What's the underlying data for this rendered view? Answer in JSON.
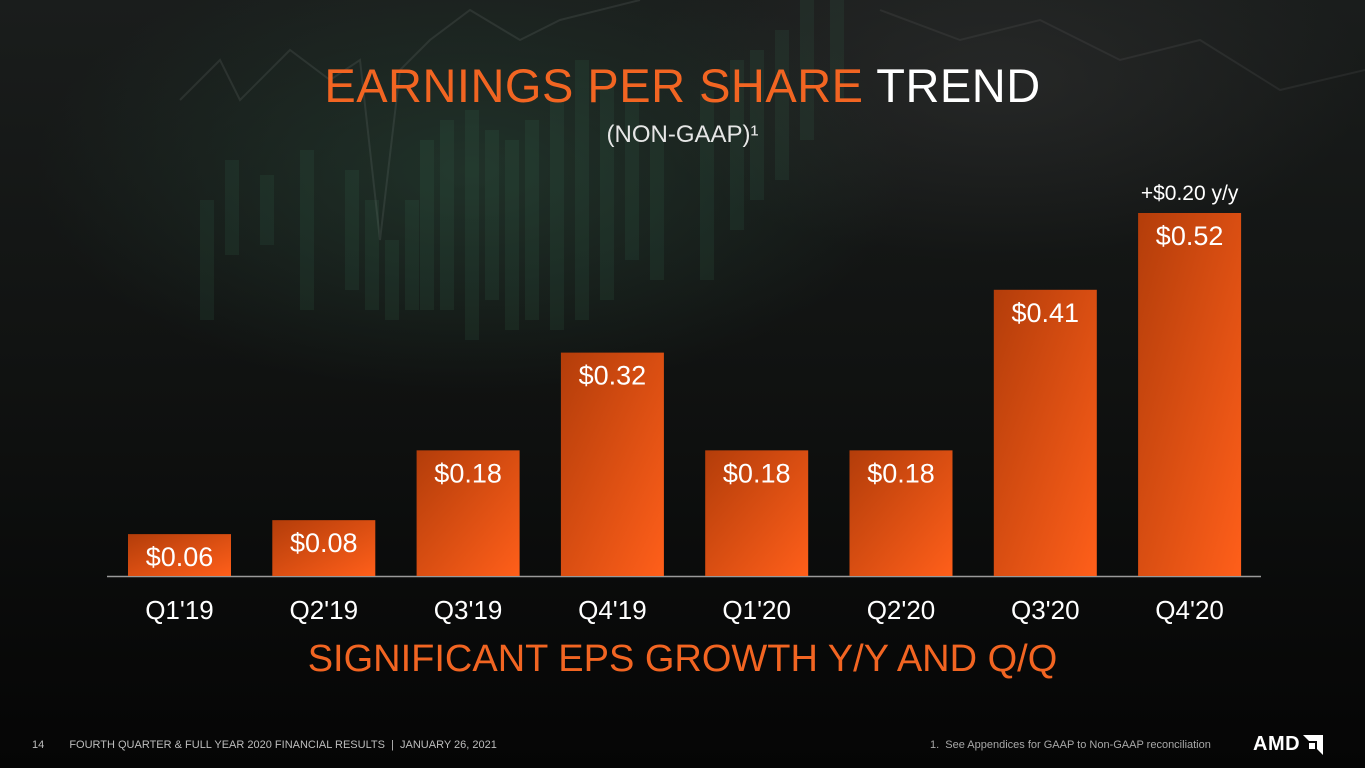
{
  "slide": {
    "title_accent": "EARNINGS PER SHARE",
    "title_plain": "TREND",
    "subtitle": "(NON-GAAP)¹",
    "tagline": "SIGNIFICANT EPS GROWTH Y/Y AND Q/Q"
  },
  "footer": {
    "page_number": "14",
    "left_text": "FOURTH QUARTER & FULL YEAR 2020 FINANCIAL RESULTS  |  JANUARY 26, 2021",
    "right_note": "1.  See Appendices for GAAP to Non-GAAP reconciliation",
    "logo_text": "AMD"
  },
  "colors": {
    "accent": "#f26522",
    "bar_dark": "#b8400a",
    "bar_light": "#ff5f1a"
  },
  "chart_data": {
    "type": "bar",
    "categories": [
      "Q1'19",
      "Q2'19",
      "Q3'19",
      "Q4'19",
      "Q1'20",
      "Q2'20",
      "Q3'20",
      "Q4'20"
    ],
    "values": [
      0.06,
      0.08,
      0.18,
      0.32,
      0.18,
      0.18,
      0.41,
      0.52
    ],
    "data_labels": [
      "$0.06",
      "$0.08",
      "$0.18",
      "$0.32",
      "$0.18",
      "$0.18",
      "$0.41",
      "$0.52"
    ],
    "annotation": {
      "category": "Q4'20",
      "text": "+$0.20 y/y"
    },
    "title": "EARNINGS PER SHARE TREND",
    "subtitle": "(NON-GAAP)¹",
    "xlabel": "",
    "ylabel": "",
    "grid": false,
    "legend": "none"
  }
}
